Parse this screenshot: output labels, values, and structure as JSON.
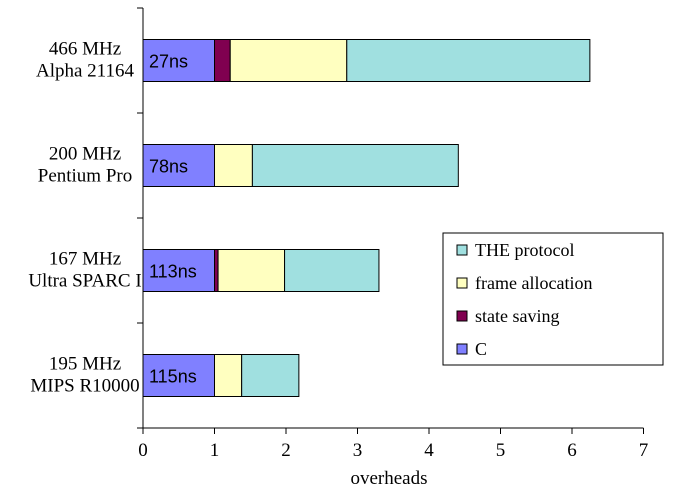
{
  "chart_data": {
    "type": "bar",
    "orientation": "horizontal",
    "stacked": true,
    "xlabel": "overheads",
    "xlim": [
      0,
      7
    ],
    "xticks": [
      "0",
      "1",
      "2",
      "3",
      "4",
      "5",
      "6",
      "7"
    ],
    "grid": false,
    "legend_position": "right",
    "categories": [
      [
        "466 MHz",
        "Alpha 21164"
      ],
      [
        "200 MHz",
        "Pentium Pro"
      ],
      [
        "167 MHz",
        "Ultra SPARC I"
      ],
      [
        "195 MHz",
        "MIPS R10000"
      ]
    ],
    "bar_labels": [
      "27ns",
      "78ns",
      "113ns",
      "115ns"
    ],
    "series": [
      {
        "name": "C",
        "color": "#8080ff",
        "values": [
          1,
          1,
          1,
          1
        ]
      },
      {
        "name": "state saving",
        "color": "#800050",
        "values": [
          0.22,
          0,
          0.05,
          0
        ]
      },
      {
        "name": "frame allocation",
        "color": "#ffffc0",
        "values": [
          1.63,
          0.53,
          0.93,
          0.38
        ]
      },
      {
        "name": "THE protocol",
        "color": "#a0e0e0",
        "values": [
          3.4,
          2.88,
          1.32,
          0.8
        ]
      }
    ],
    "legend_order": [
      "THE protocol",
      "frame allocation",
      "state saving",
      "C"
    ]
  }
}
